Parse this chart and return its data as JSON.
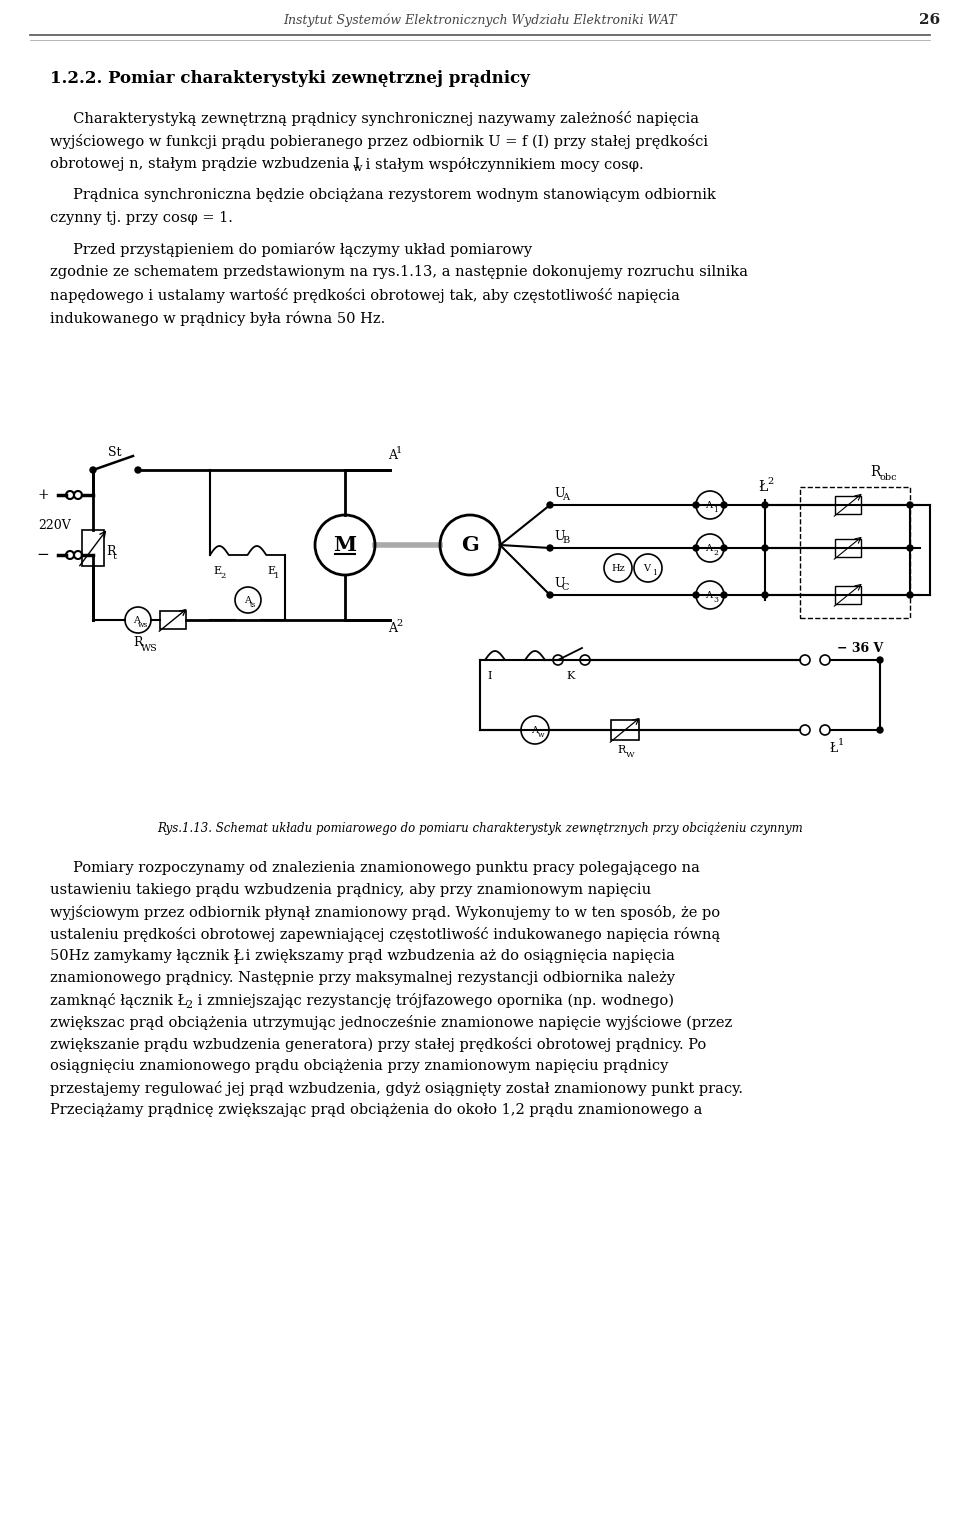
{
  "header_text": "Instytut Systemów Elektronicznych Wydziału Elektroniki WAT",
  "page_number": "26",
  "section_title": "1.2.2. Pomiar charakterystyki zewnętrznej prądnicy",
  "bg_color": "#ffffff",
  "text_color": "#000000",
  "caption": "Rys.1.13. Schemat układu pomiarowego do pomiaru charakterystyk zewnętrznych przy obciążeniu czynnym"
}
